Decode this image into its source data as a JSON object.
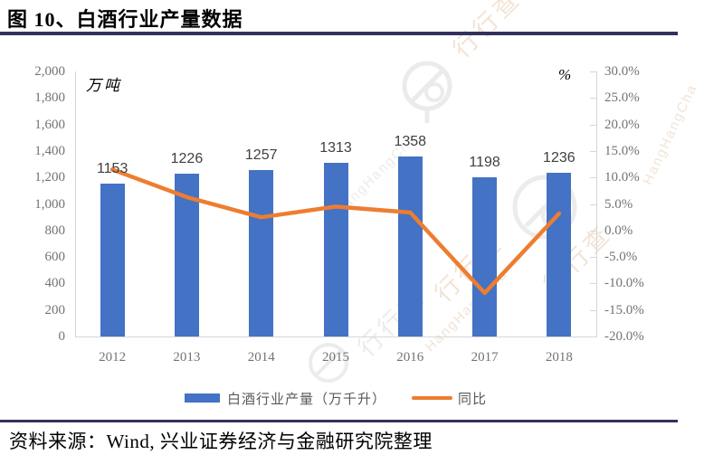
{
  "title": "图 10、白酒行业产量数据",
  "source_note": "资料来源：Wind, 兴业证券经济与金融研究院整理",
  "watermark": {
    "cn": "行行查",
    "en": "HangHangCha"
  },
  "colors": {
    "bar": "#4472C4",
    "line": "#ED7D31",
    "rule": "#32315E",
    "axis": "#D6D6D6",
    "tick_text": "#737373",
    "bar_label_text": "#404040"
  },
  "chart_data": {
    "type": "combo-bar-line",
    "categories": [
      "2012",
      "2013",
      "2014",
      "2015",
      "2016",
      "2017",
      "2018"
    ],
    "series": [
      {
        "name": "白酒行业产量（万千升）",
        "type": "bar",
        "axis": "left",
        "color": "#4472C4",
        "values": [
          1153,
          1226,
          1257,
          1313,
          1358,
          1198,
          1236
        ],
        "data_labels": [
          "1153",
          "1226",
          "1257",
          "1313",
          "1358",
          "1198",
          "1236"
        ]
      },
      {
        "name": "同比",
        "type": "line",
        "axis": "right",
        "color": "#ED7D31",
        "values_percent": [
          11.5,
          6.3,
          2.5,
          4.5,
          3.4,
          -11.8,
          3.2
        ]
      }
    ],
    "left_axis": {
      "unit": "万吨",
      "min": 0,
      "max": 2000,
      "step": 200,
      "tick_values": [
        2000,
        1800,
        1600,
        1400,
        1200,
        1000,
        800,
        600,
        400,
        200,
        0
      ],
      "tick_labels": [
        "2,000",
        "1,800",
        "1,600",
        "1,400",
        "1,200",
        "1,000",
        "800",
        "600",
        "400",
        "200",
        "0"
      ]
    },
    "right_axis": {
      "unit": "%",
      "min": -20,
      "max": 30,
      "step": 5,
      "tick_values": [
        30,
        25,
        20,
        15,
        10,
        5,
        0,
        -5,
        -10,
        -15,
        -20
      ],
      "tick_labels": [
        "30.0%",
        "25.0%",
        "20.0%",
        "15.0%",
        "10.0%",
        "5.0%",
        "0.0%",
        "-5.0%",
        "-10.0%",
        "-15.0%",
        "-20.0%"
      ]
    },
    "legend_position": "bottom",
    "grid": "off"
  }
}
